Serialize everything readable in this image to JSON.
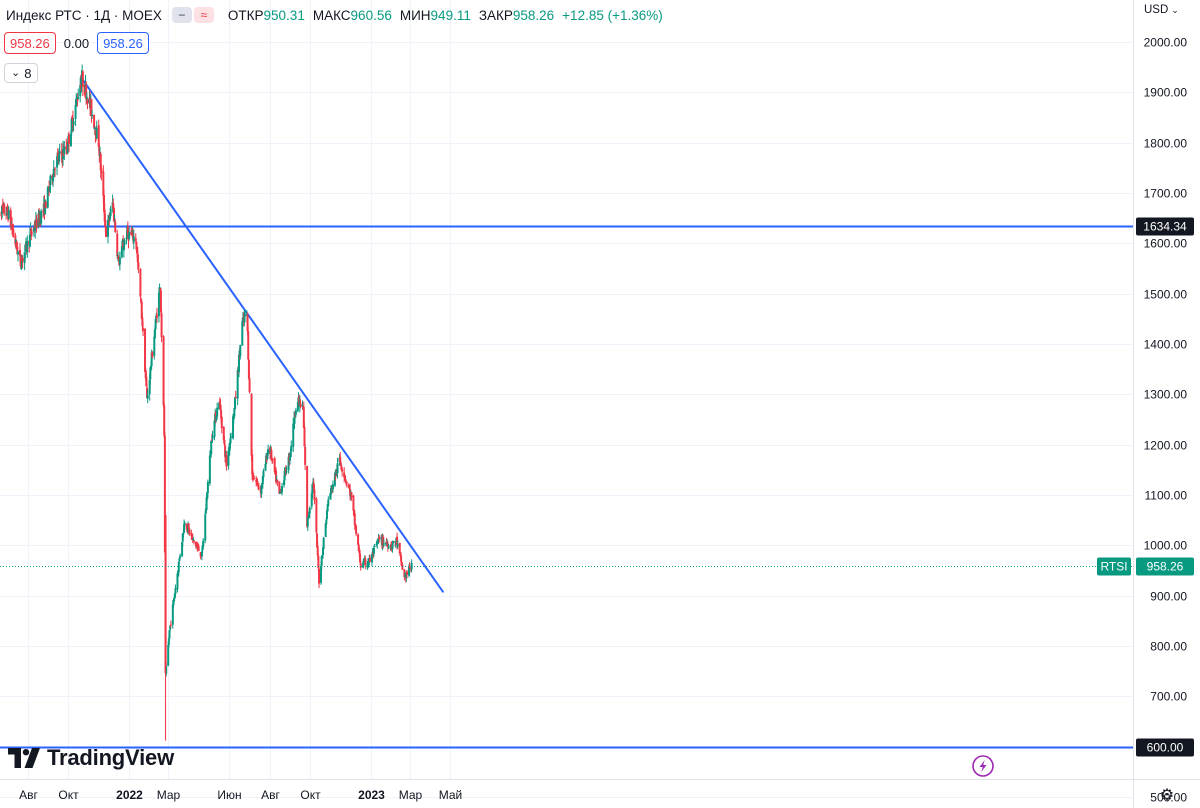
{
  "header": {
    "title": "Индекс РТС · 1Д · MOEX",
    "ohlc": [
      {
        "key": "ОТКР",
        "value": "950.31"
      },
      {
        "key": "МАКС",
        "value": "960.56"
      },
      {
        "key": "МИН",
        "value": "949.11"
      },
      {
        "key": "ЗАКР",
        "value": "958.26"
      }
    ],
    "change": "+12.85 (+1.36%)"
  },
  "values_row": {
    "bid": "958.26",
    "spread": "0.00",
    "ask": "958.26"
  },
  "indicator_counter": "8",
  "currency": "USD",
  "brand": "TradingView",
  "colors": {
    "up": "#089981",
    "down": "#f23645",
    "trendline": "#2962ff",
    "grid": "#f0f3fa",
    "axis_text": "#131722",
    "label_bg": "#131722"
  },
  "chart_data": {
    "type": "candlestick",
    "symbol": "RTSI",
    "x_axis_ticks": [
      "Авг",
      "Окт",
      "2022",
      "Мар",
      "Июн",
      "Авг",
      "Окт",
      "2023",
      "Мар",
      "Май"
    ],
    "y_axis_ticks": [
      "2000.00",
      "1900.00",
      "1800.00",
      "1700.00",
      "1600.00",
      "1500.00",
      "1400.00",
      "1300.00",
      "1200.00",
      "1100.00",
      "1000.00",
      "900.00",
      "800.00",
      "700.00",
      "600.00",
      "500.00"
    ],
    "ylim": [
      480,
      2020
    ],
    "last_price": {
      "label": "RTSI",
      "value": "958.26",
      "price": 958.26
    },
    "horizontal_lines": [
      {
        "label": "1634.34",
        "price": 1634.34
      },
      {
        "label": "600.00",
        "price": 600.0
      }
    ],
    "trendline": {
      "start": {
        "date": "2021-10-20",
        "price": 1930
      },
      "end": {
        "date": "2023-04-20",
        "price": 908
      }
    },
    "price_path": [
      [
        "2021-06-15",
        1670
      ],
      [
        "2021-07-01",
        1660
      ],
      [
        "2021-07-20",
        1560
      ],
      [
        "2021-08-05",
        1620
      ],
      [
        "2021-08-25",
        1670
      ],
      [
        "2021-09-10",
        1760
      ],
      [
        "2021-09-28",
        1790
      ],
      [
        "2021-10-12",
        1880
      ],
      [
        "2021-10-20",
        1930
      ],
      [
        "2021-11-01",
        1880
      ],
      [
        "2021-11-15",
        1800
      ],
      [
        "2021-11-26",
        1620
      ],
      [
        "2021-12-06",
        1680
      ],
      [
        "2021-12-15",
        1560
      ],
      [
        "2021-12-27",
        1620
      ],
      [
        "2022-01-10",
        1610
      ],
      [
        "2022-01-20",
        1440
      ],
      [
        "2022-01-27",
        1290
      ],
      [
        "2022-02-08",
        1430
      ],
      [
        "2022-02-16",
        1520
      ],
      [
        "2022-02-22",
        1220
      ],
      [
        "2022-02-24",
        740
      ],
      [
        "2022-03-02",
        830
      ],
      [
        "2022-03-25",
        1050
      ],
      [
        "2022-04-06",
        1010
      ],
      [
        "2022-04-20",
        980
      ],
      [
        "2022-05-05",
        1220
      ],
      [
        "2022-05-16",
        1290
      ],
      [
        "2022-05-27",
        1160
      ],
      [
        "2022-06-08",
        1270
      ],
      [
        "2022-06-20",
        1440
      ],
      [
        "2022-06-27",
        1460
      ],
      [
        "2022-07-05",
        1140
      ],
      [
        "2022-07-18",
        1110
      ],
      [
        "2022-07-30",
        1200
      ],
      [
        "2022-08-15",
        1100
      ],
      [
        "2022-08-31",
        1180
      ],
      [
        "2022-09-10",
        1290
      ],
      [
        "2022-09-20",
        1270
      ],
      [
        "2022-09-26",
        1040
      ],
      [
        "2022-10-05",
        1130
      ],
      [
        "2022-10-14",
        930
      ],
      [
        "2022-10-28",
        1090
      ],
      [
        "2022-11-14",
        1170
      ],
      [
        "2022-12-01",
        1100
      ],
      [
        "2022-12-16",
        960
      ],
      [
        "2022-12-30",
        970
      ],
      [
        "2023-01-12",
        1010
      ],
      [
        "2023-02-01",
        1000
      ],
      [
        "2023-02-08",
        1010
      ],
      [
        "2023-02-20",
        935
      ],
      [
        "2023-03-03",
        958
      ]
    ]
  }
}
